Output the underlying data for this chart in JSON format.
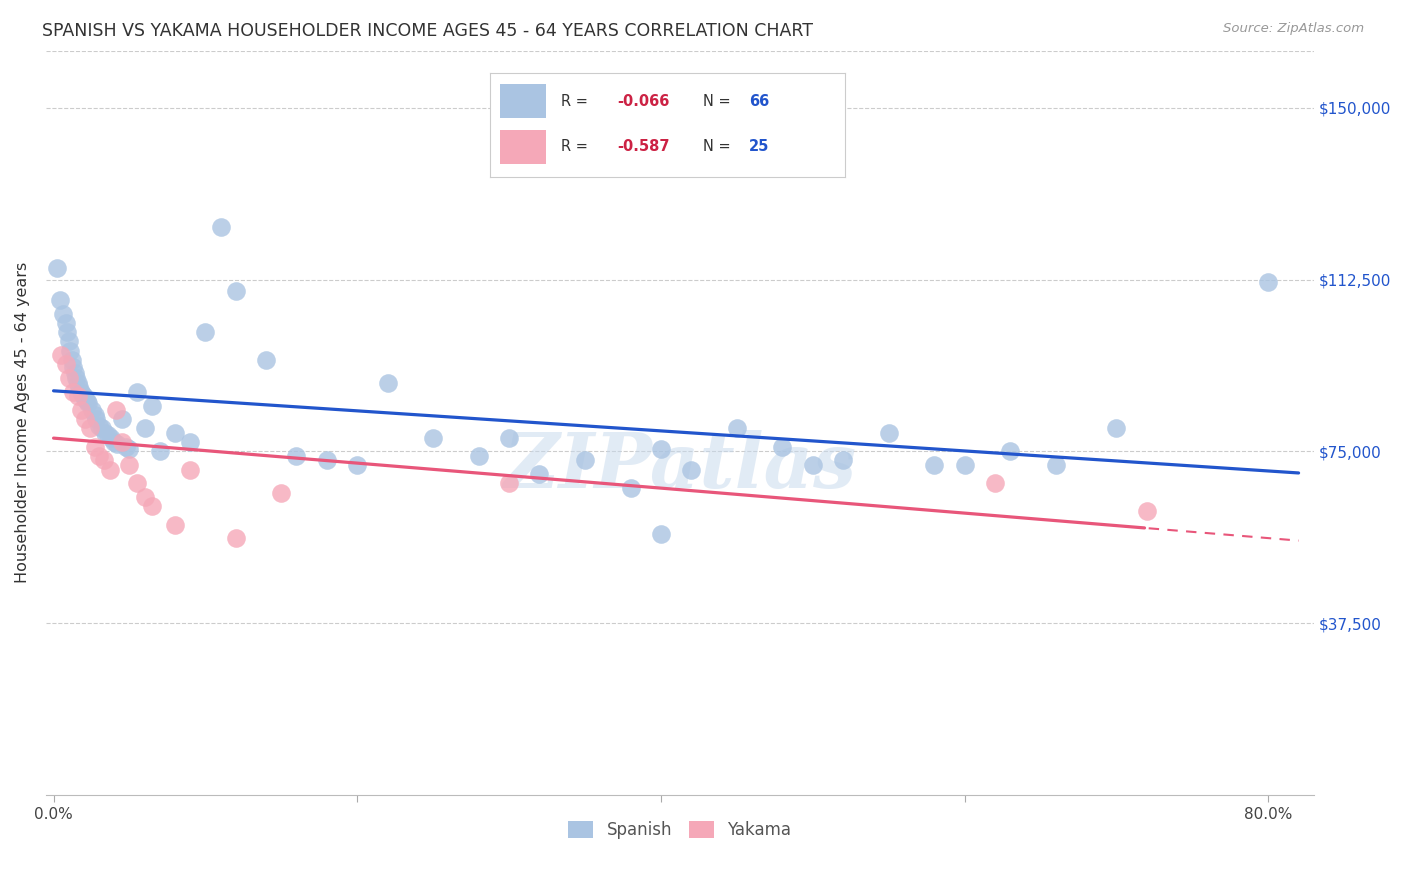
{
  "title": "SPANISH VS YAKAMA HOUSEHOLDER INCOME AGES 45 - 64 YEARS CORRELATION CHART",
  "source": "Source: ZipAtlas.com",
  "ylabel": "Householder Income Ages 45 - 64 years",
  "ytick_vals": [
    37500,
    75000,
    112500,
    150000
  ],
  "ytick_labels": [
    "$37,500",
    "$75,000",
    "$112,500",
    "$150,000"
  ],
  "ylim": [
    0,
    162500
  ],
  "xlim": [
    -0.005,
    0.83
  ],
  "legend1_R": "-0.066",
  "legend1_N": "66",
  "legend2_R": "-0.587",
  "legend2_N": "25",
  "spanish_color": "#aac4e2",
  "yakama_color": "#f5a8b8",
  "trend_spanish_color": "#2255cc",
  "trend_yakama_color": "#e8567a",
  "background_color": "#ffffff",
  "watermark": "ZIPatlas",
  "sp_x": [
    0.002,
    0.004,
    0.006,
    0.008,
    0.009,
    0.01,
    0.011,
    0.012,
    0.013,
    0.014,
    0.015,
    0.016,
    0.017,
    0.018,
    0.019,
    0.02,
    0.021,
    0.022,
    0.023,
    0.025,
    0.027,
    0.028,
    0.03,
    0.032,
    0.034,
    0.036,
    0.038,
    0.04,
    0.042,
    0.045,
    0.048,
    0.05,
    0.055,
    0.06,
    0.065,
    0.07,
    0.08,
    0.09,
    0.1,
    0.11,
    0.12,
    0.14,
    0.16,
    0.18,
    0.2,
    0.22,
    0.25,
    0.28,
    0.3,
    0.32,
    0.35,
    0.38,
    0.4,
    0.42,
    0.45,
    0.48,
    0.5,
    0.52,
    0.55,
    0.58,
    0.6,
    0.63,
    0.66,
    0.7,
    0.8,
    0.4
  ],
  "sp_y": [
    115000,
    108000,
    105000,
    103000,
    101000,
    99000,
    97000,
    95000,
    93500,
    92000,
    91000,
    90000,
    89000,
    88000,
    87500,
    87000,
    86500,
    86000,
    85500,
    84000,
    83000,
    82000,
    80500,
    80000,
    79000,
    78500,
    78000,
    77000,
    76500,
    82000,
    76000,
    75500,
    88000,
    80000,
    85000,
    75000,
    79000,
    77000,
    101000,
    124000,
    110000,
    95000,
    74000,
    73000,
    72000,
    90000,
    78000,
    74000,
    78000,
    70000,
    73000,
    67000,
    75500,
    71000,
    80000,
    76000,
    72000,
    73000,
    79000,
    72000,
    72000,
    75000,
    72000,
    80000,
    112000,
    57000
  ],
  "yk_x": [
    0.005,
    0.008,
    0.01,
    0.013,
    0.016,
    0.018,
    0.021,
    0.024,
    0.027,
    0.03,
    0.033,
    0.037,
    0.041,
    0.045,
    0.05,
    0.055,
    0.06,
    0.065,
    0.08,
    0.09,
    0.12,
    0.15,
    0.3,
    0.62,
    0.72
  ],
  "yk_y": [
    96000,
    94000,
    91000,
    88000,
    87000,
    84000,
    82000,
    80000,
    76000,
    74000,
    73000,
    71000,
    84000,
    77000,
    72000,
    68000,
    65000,
    63000,
    59000,
    71000,
    56000,
    66000,
    68000,
    68000,
    62000
  ]
}
